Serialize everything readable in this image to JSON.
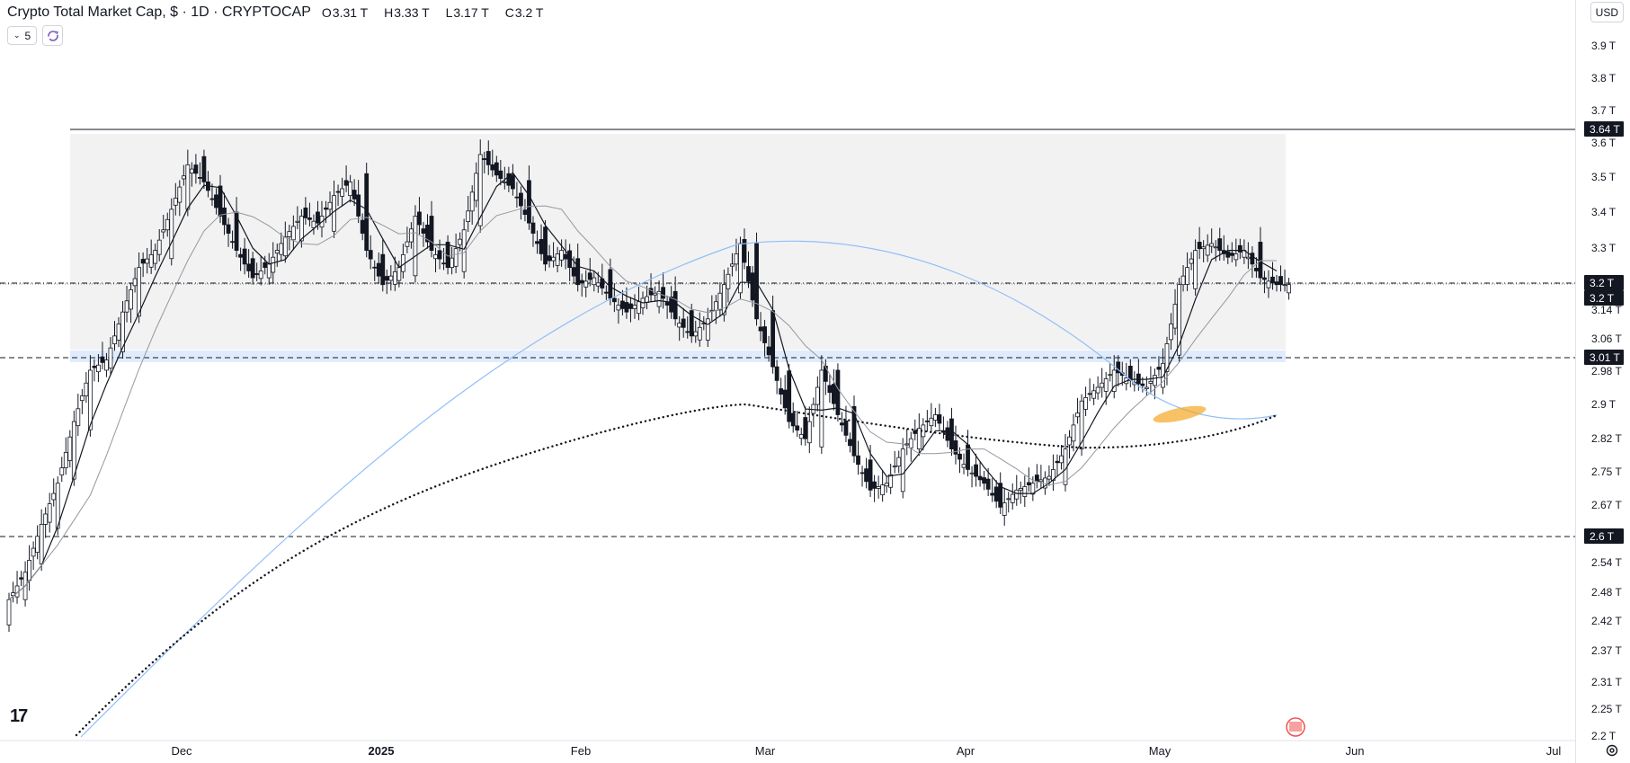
{
  "legend": {
    "title": "Crypto Total Market Cap, $ · 1D · CRYPTOCAP",
    "open_label": "O",
    "open": "3.31 T",
    "high_label": "H",
    "high": "3.33 T",
    "low_label": "L",
    "low": "3.17 T",
    "close_label": "C",
    "close": "3.2 T"
  },
  "indicators": {
    "count": "5"
  },
  "currency_button": "USD",
  "colors": {
    "up": "#2962ff",
    "down": "#131722",
    "ma_fast": "#131722",
    "ma_slow": "#9598a1",
    "ma_long": "#90bff9",
    "ma_dotted": "#131722",
    "zone": "#f2f2f2",
    "support_zone": "#dbe9fb",
    "highlight": "#f5a623"
  },
  "chart_data": {
    "type": "candlestick",
    "title": "Crypto Total Market Cap, $ · 1D · CRYPTOCAP",
    "y_unit": "T",
    "ylim": [
      2.2,
      3.95
    ],
    "y_ticks": [
      "3.9 T",
      "3.8 T",
      "3.7 T",
      "3.6 T",
      "3.5 T",
      "3.4 T",
      "3.3 T",
      "3.22 T",
      "3.14 T",
      "3.06 T",
      "2.98 T",
      "2.9 T",
      "2.82 T",
      "2.75 T",
      "2.67 T",
      "2.6 T",
      "2.54 T",
      "2.48 T",
      "2.42 T",
      "2.37 T",
      "2.31 T",
      "2.25 T",
      "2.2 T"
    ],
    "x_labels": [
      "Dec",
      "2025",
      "Feb",
      "Mar",
      "Apr",
      "May",
      "Jun",
      "Jul"
    ],
    "price_labels": [
      {
        "label": "3.64 T",
        "value": 3.64
      },
      {
        "label": "3.2 T",
        "value": 3.2
      },
      {
        "label": "3.2 T",
        "value": 3.2
      },
      {
        "label": "3.01 T",
        "value": 3.01
      },
      {
        "label": "2.6 T",
        "value": 2.6
      }
    ],
    "horizontal_lines": [
      {
        "value": 3.64,
        "style": "solid"
      },
      {
        "value": 3.2,
        "style": "dash-dot"
      },
      {
        "value": 3.2,
        "style": "dotted"
      },
      {
        "value": 3.01,
        "style": "dashed"
      },
      {
        "value": 2.6,
        "style": "dashed"
      }
    ],
    "zones": [
      {
        "from": 3.01,
        "to": 3.64,
        "name": "range"
      },
      {
        "from": 2.99,
        "to": 3.03,
        "name": "support"
      }
    ],
    "ohlc_sample_close": [
      2.28,
      2.36,
      2.5,
      2.62,
      2.8,
      2.95,
      2.98,
      3.12,
      3.25,
      3.3,
      3.42,
      3.55,
      3.5,
      3.4,
      3.3,
      3.22,
      3.26,
      3.34,
      3.4,
      3.38,
      3.46,
      3.5,
      3.3,
      3.2,
      3.25,
      3.4,
      3.3,
      3.25,
      3.36,
      3.58,
      3.52,
      3.48,
      3.38,
      3.26,
      3.3,
      3.2,
      3.22,
      3.16,
      3.12,
      3.16,
      3.18,
      3.1,
      3.05,
      3.1,
      3.2,
      3.32,
      3.1,
      2.96,
      2.8,
      2.75,
      2.95,
      2.82,
      2.7,
      2.6,
      2.62,
      2.72,
      2.78,
      2.82,
      2.72,
      2.66,
      2.62,
      2.55,
      2.6,
      2.62,
      2.64,
      2.72,
      2.86,
      2.9,
      2.95,
      2.92,
      2.9,
      2.97,
      3.2,
      3.3,
      3.32,
      3.28,
      3.3,
      3.22,
      3.2
    ],
    "moving_averages": [
      "fast",
      "slow",
      "long",
      "dotted"
    ]
  }
}
